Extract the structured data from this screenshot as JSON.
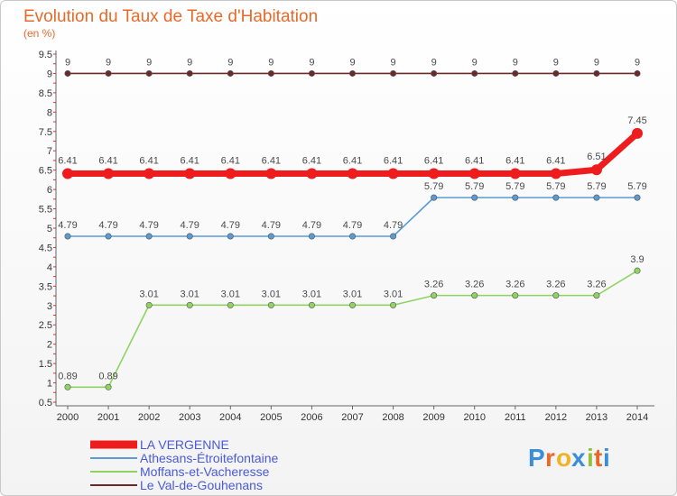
{
  "chart_data": {
    "type": "line",
    "title": "Evolution du Taux de Taxe d'Habitation",
    "subtitle": "(en %)",
    "x": [
      "2000",
      "2001",
      "2002",
      "2003",
      "2004",
      "2005",
      "2006",
      "2007",
      "2008",
      "2009",
      "2010",
      "2011",
      "2012",
      "2013",
      "2014"
    ],
    "yticks": [
      "0.5",
      "1",
      "1.5",
      "2",
      "2.5",
      "3",
      "3.5",
      "4",
      "4.5",
      "5",
      "5.5",
      "6",
      "6.5",
      "7",
      "7.5",
      "8",
      "8.5",
      "9",
      "9.5"
    ],
    "ylim": [
      0.5,
      9.5
    ],
    "grid": false,
    "series": [
      {
        "name": "Le Val-de-Gouhenans",
        "color": "#6b2a2a",
        "values": [
          9,
          9,
          9,
          9,
          9,
          9,
          9,
          9,
          9,
          9,
          9,
          9,
          9,
          9,
          9
        ],
        "labels": [
          "9",
          "9",
          "9",
          "9",
          "9",
          "9",
          "9",
          "9",
          "9",
          "9",
          "9",
          "9",
          "9",
          "9",
          "9"
        ]
      },
      {
        "name": "Athesans-Étroitefontaine",
        "color": "#5a9bd4",
        "values": [
          4.79,
          4.79,
          4.79,
          4.79,
          4.79,
          4.79,
          4.79,
          4.79,
          4.79,
          5.79,
          5.79,
          5.79,
          5.79,
          5.79,
          5.79
        ],
        "labels": [
          "4.79",
          "4.79",
          "4.79",
          "4.79",
          "4.79",
          "4.79",
          "4.79",
          "4.79",
          "4.79",
          "5.79",
          "5.79",
          "5.79",
          "5.79",
          "5.79",
          "5.79"
        ]
      },
      {
        "name": "Moffans-et-Vacheresse",
        "color": "#8fd460",
        "values": [
          0.89,
          0.89,
          3.01,
          3.01,
          3.01,
          3.01,
          3.01,
          3.01,
          3.01,
          3.26,
          3.26,
          3.26,
          3.26,
          3.26,
          3.9
        ],
        "labels": [
          "0.89",
          "0.89",
          "3.01",
          "3.01",
          "3.01",
          "3.01",
          "3.01",
          "3.01",
          "3.01",
          "3.26",
          "3.26",
          "3.26",
          "3.26",
          "3.26",
          "3.9"
        ]
      },
      {
        "name": "LA VERGENNE",
        "color": "#ee1c1c",
        "values": [
          6.41,
          6.41,
          6.41,
          6.41,
          6.41,
          6.41,
          6.41,
          6.41,
          6.41,
          6.41,
          6.41,
          6.41,
          6.41,
          6.51,
          7.45
        ],
        "labels": [
          "6.41",
          "6.41",
          "6.41",
          "6.41",
          "6.41",
          "6.41",
          "6.41",
          "6.41",
          "6.41",
          "6.41",
          "6.41",
          "6.41",
          "6.41",
          "6.51",
          "7.45"
        ]
      }
    ],
    "legend": [
      "LA VERGENNE",
      "Athesans-Étroitefontaine",
      "Moffans-et-Vacheresse",
      "Le Val-de-Gouhenans"
    ],
    "legend_colors": [
      "#ee1c1c",
      "#5a9bd4",
      "#8fd460",
      "#6b2a2a"
    ]
  },
  "logo": {
    "letters": [
      "P",
      "r",
      "o",
      "x",
      "i",
      "t",
      "i"
    ],
    "colors": [
      "#3a8fd8",
      "#e8692a",
      "#f0b323",
      "#3a8fd8",
      "#8fc43a",
      "#e8692a",
      "#3a8fd8"
    ]
  }
}
